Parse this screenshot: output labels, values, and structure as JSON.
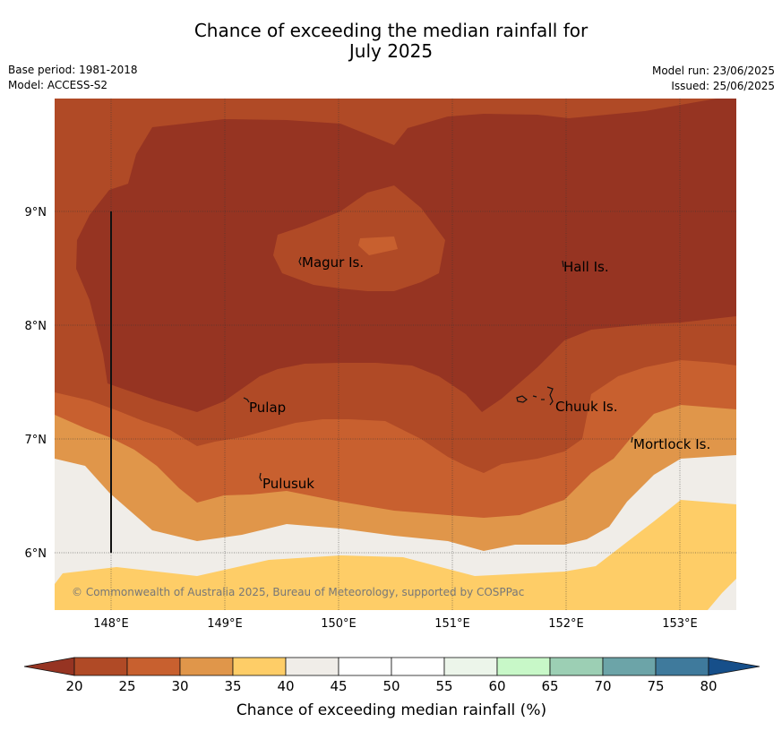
{
  "title_line1": "Chance of exceeding the median rainfall for",
  "title_line2": "July 2025",
  "meta_left": [
    "Base period: 1981-2018",
    "Model: ACCESS-S2"
  ],
  "meta_right": [
    "Model run: 23/06/2025",
    "Issued: 25/06/2025"
  ],
  "places": [
    {
      "id": "magur",
      "name": "Magur Is."
    },
    {
      "id": "hall",
      "name": "Hall Is."
    },
    {
      "id": "pulap",
      "name": "Pulap"
    },
    {
      "id": "chuuk",
      "name": "Chuuk Is."
    },
    {
      "id": "mortlock",
      "name": "Mortlock Is."
    },
    {
      "id": "pulusuk",
      "name": "Pulusuk"
    }
  ],
  "lat_labels": [
    "9°N",
    "8°N",
    "7°N",
    "6°N"
  ],
  "lon_labels": [
    "148°E",
    "149°E",
    "150°E",
    "151°E",
    "152°E",
    "153°E"
  ],
  "copyright": "© Commonwealth of Australia 2025, Bureau of Meteorology, supported by COSPPac",
  "colorbar": {
    "label": "Chance of exceeding median rainfall (%)",
    "ticks": [
      "20",
      "25",
      "30",
      "35",
      "40",
      "45",
      "50",
      "55",
      "60",
      "65",
      "70",
      "75",
      "80"
    ],
    "colors": [
      "#b04a26",
      "#c8602f",
      "#e0964a",
      "#fecd67",
      "#f0ede8",
      "#ffffff",
      "#ffffff",
      "#ecf5ea",
      "#c8f8c8",
      "#9ccfb4",
      "#6ca4a8",
      "#3f7a9c"
    ],
    "under_color": "#963422",
    "over_color": "#164f8a"
  },
  "map_colors": {
    "c15": "#963422",
    "c20": "#b04a26",
    "c25": "#c8602f",
    "c30": "#e0964a",
    "c35": "#fecd67",
    "c40": "#f0ede8"
  }
}
